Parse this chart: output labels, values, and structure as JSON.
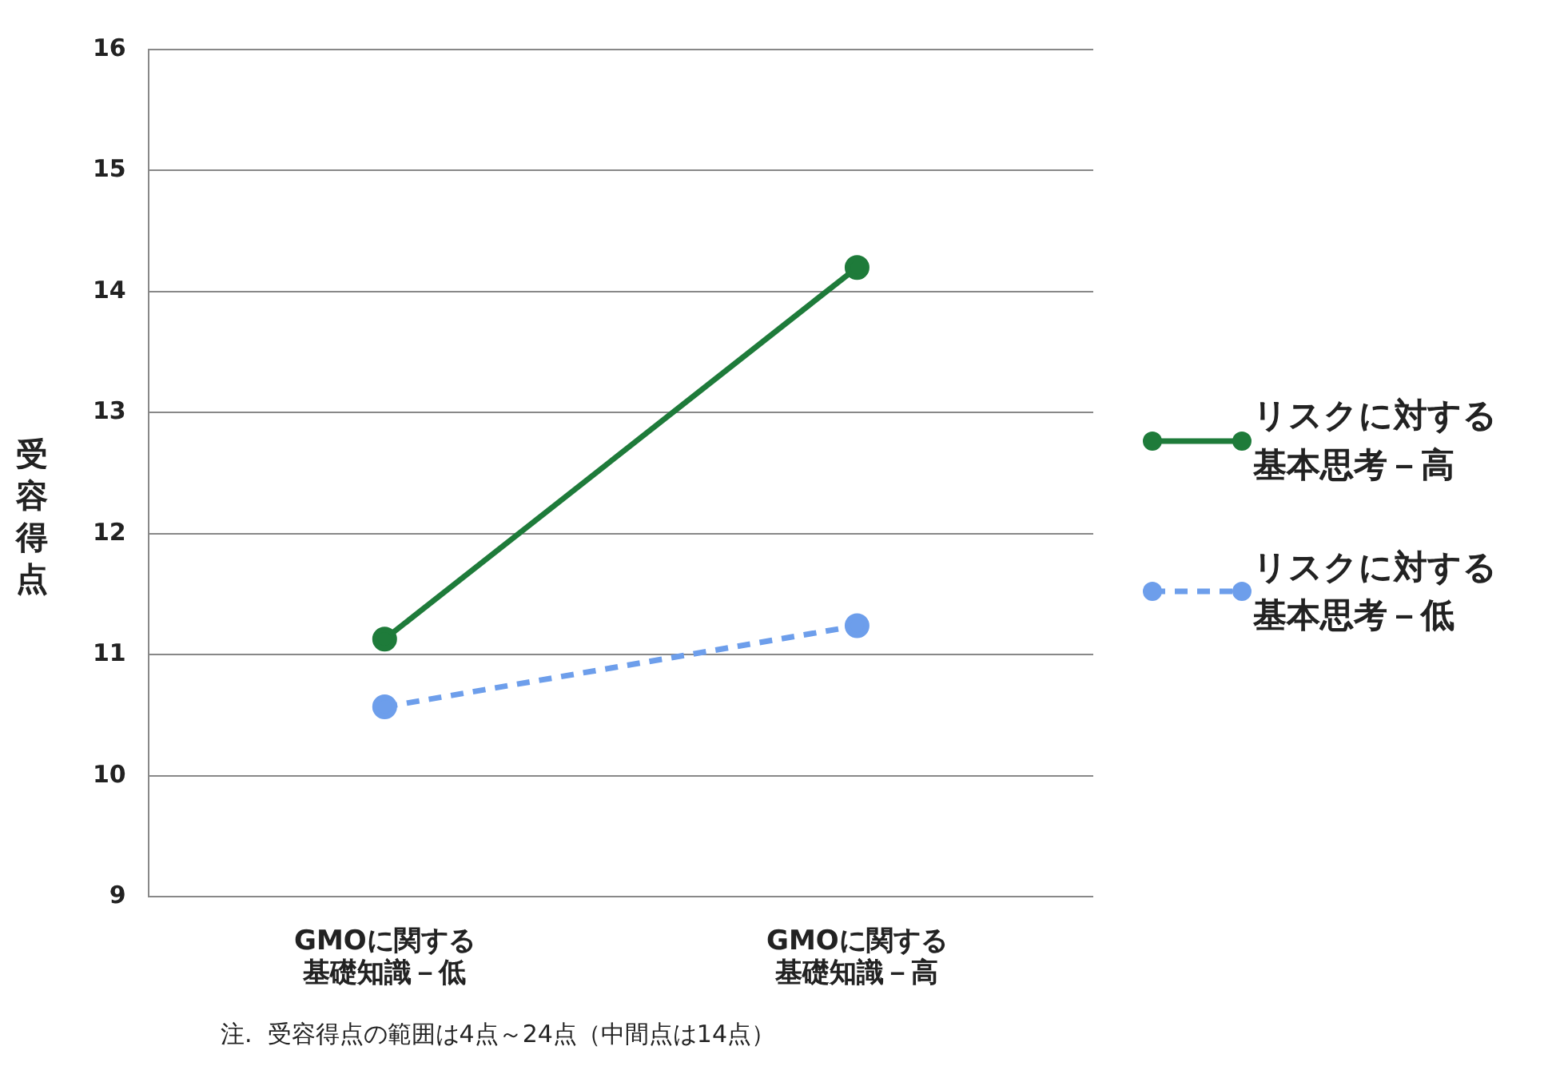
{
  "chart_data": {
    "type": "line",
    "ylabel": "受容得点",
    "categories": [
      "GMOに関する基礎知識－低",
      "GMOに関する基礎知識－高"
    ],
    "series": [
      {
        "name": "リスクに対する基本思考－高",
        "color": "#1e7b3a",
        "values": [
          11.13,
          14.2
        ],
        "line_style": "solid"
      },
      {
        "name": "リスクに対する基本思考－低",
        "color": "#6d9eeb",
        "values": [
          10.57,
          11.24
        ],
        "line_style": "dashed"
      }
    ],
    "ylim": [
      9,
      16
    ],
    "yticks": [
      9,
      10,
      11,
      12,
      13,
      14,
      15,
      16
    ],
    "grid": "y",
    "legend": "right",
    "marker": "circle",
    "annotations": [
      "注.  受容得点の範囲は4点～24点（中間点は14点）"
    ]
  }
}
